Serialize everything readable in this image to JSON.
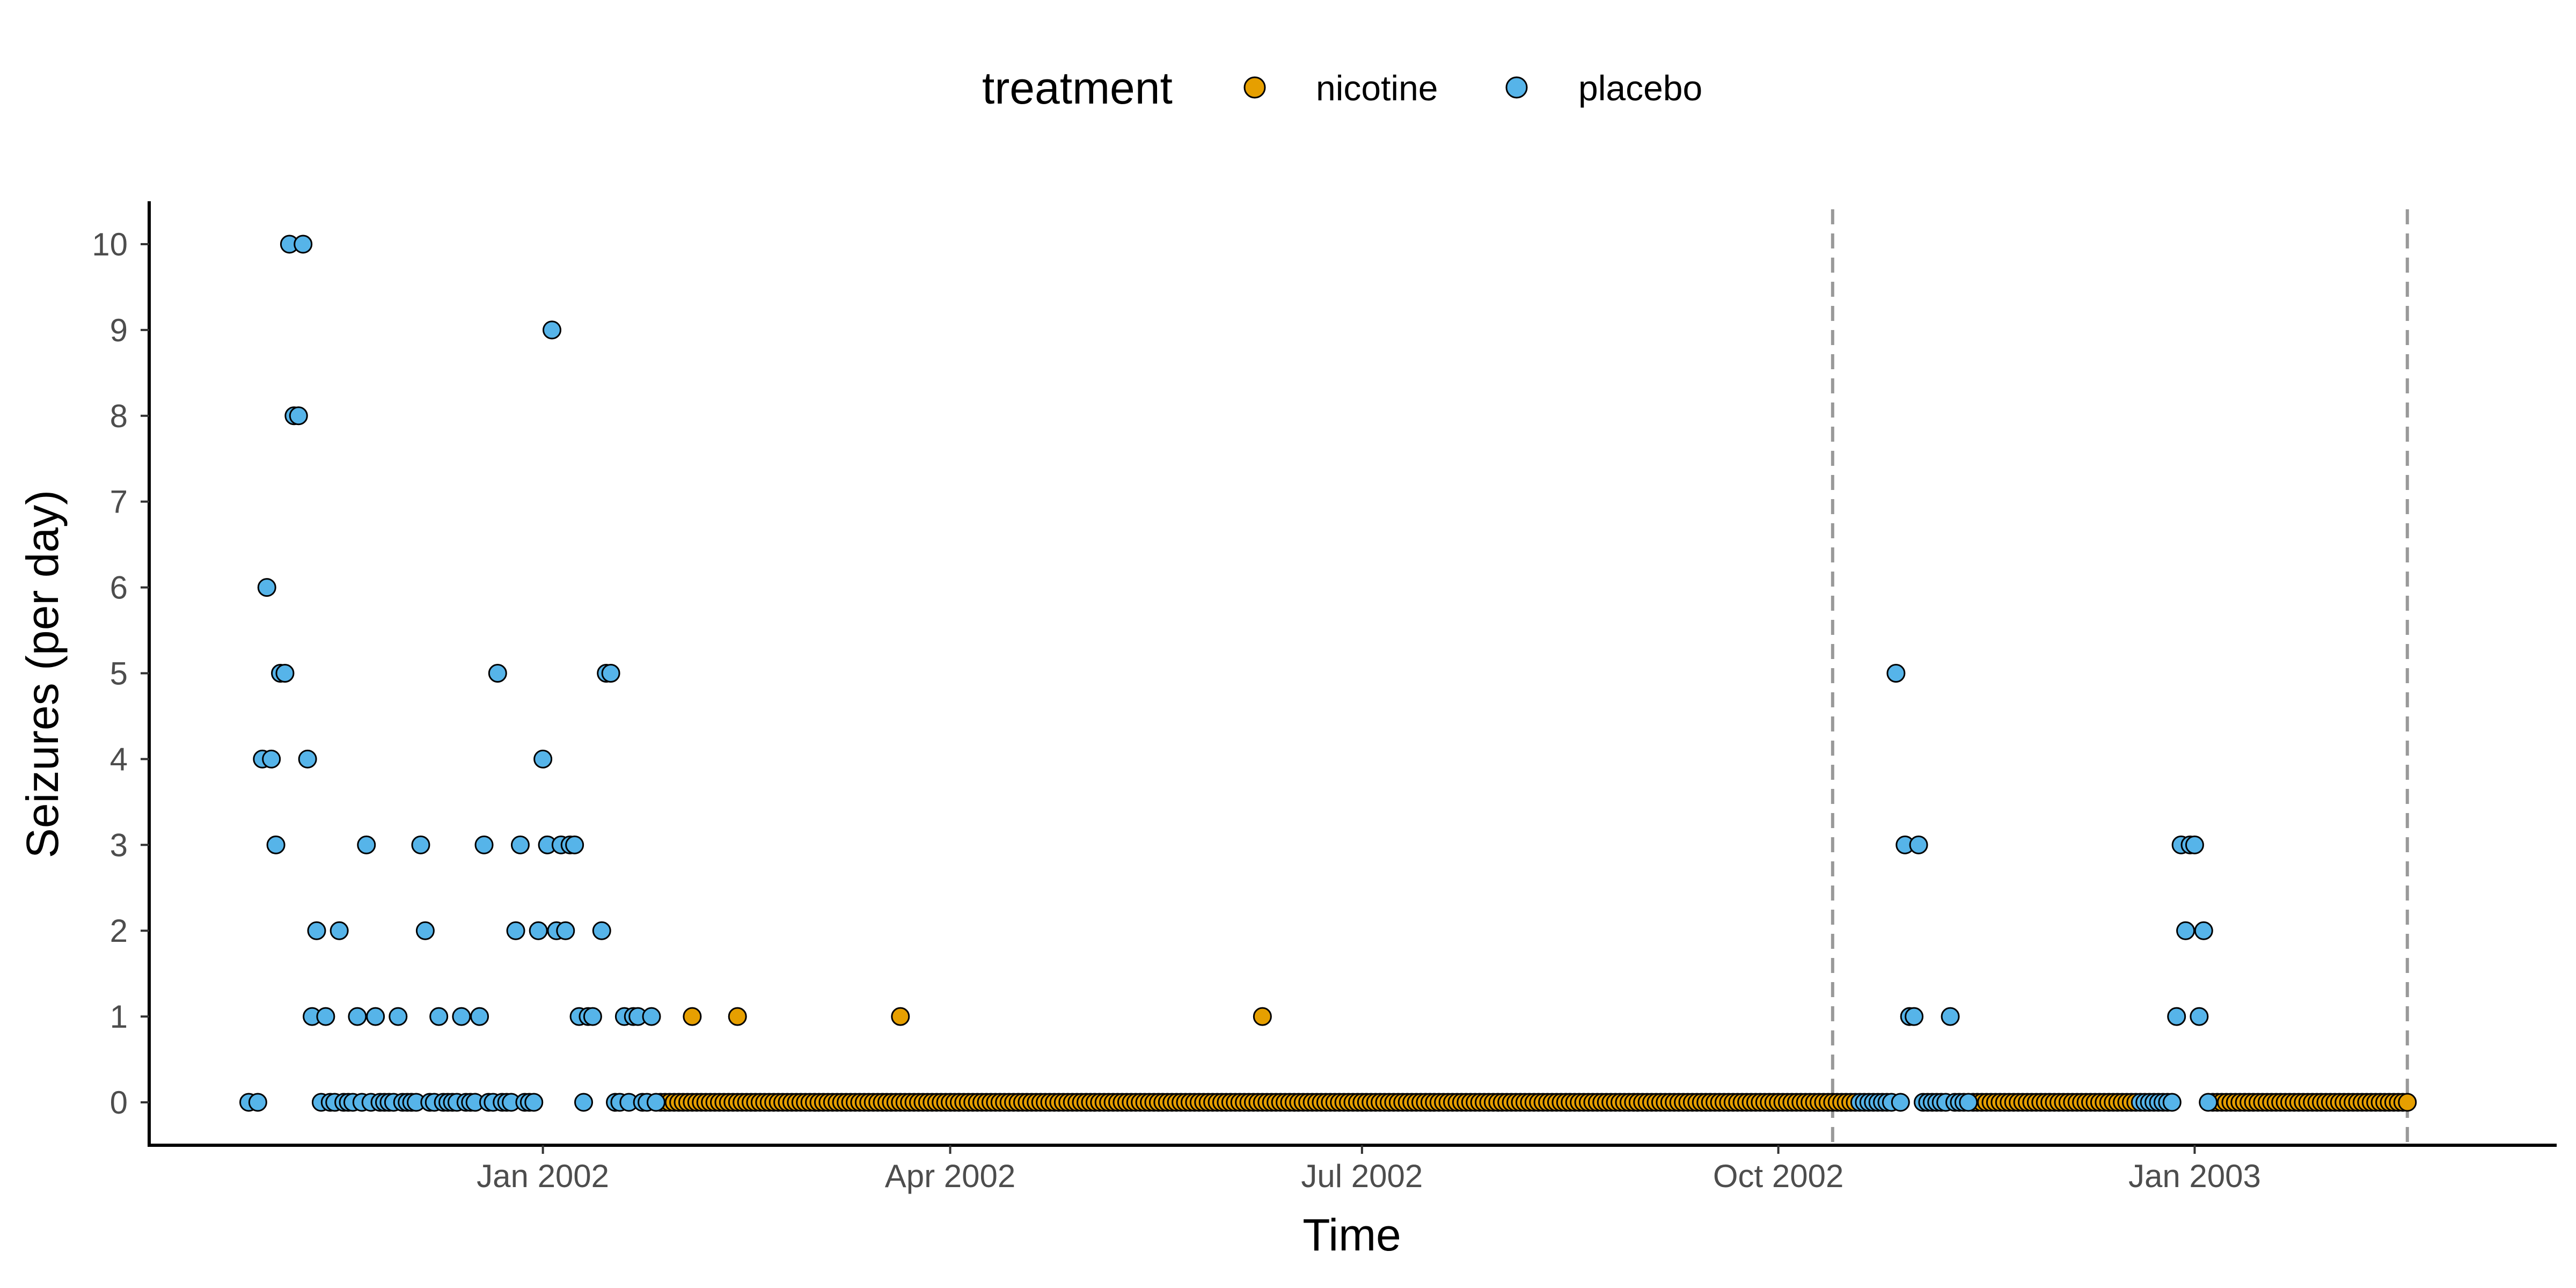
{
  "chart_data": {
    "type": "scatter",
    "xlabel": "Time",
    "ylabel": "Seizures (per day)",
    "x_ticks": [
      "2002-01-01",
      "2002-04-01",
      "2002-07-01",
      "2002-10-01",
      "2003-01-01"
    ],
    "x_tick_labels": [
      "Jan 2002",
      "Apr 2002",
      "Jul 2002",
      "Oct 2002",
      "Jan 2003"
    ],
    "xlim": [
      "2001-10-06",
      "2003-03-22"
    ],
    "ylim": [
      -0.5,
      10.5
    ],
    "y_ticks": [
      0,
      1,
      2,
      3,
      4,
      5,
      6,
      7,
      8,
      9,
      10
    ],
    "y_tick_labels": [
      "0",
      "1",
      "2",
      "3",
      "4",
      "5",
      "6",
      "7",
      "8",
      "9",
      "10"
    ],
    "grid": false,
    "legend": {
      "title": "treatment",
      "position": "top",
      "items": [
        {
          "label": "nicotine",
          "color": "#E69F00"
        },
        {
          "label": "placebo",
          "color": "#56B4E9"
        }
      ]
    },
    "reference_lines": [
      "2002-10-13",
      "2003-02-17"
    ],
    "reference_line_color": "#999999",
    "series": [
      {
        "name": "placebo",
        "color": "#56B4E9",
        "points": [
          [
            "2001-10-28",
            0
          ],
          [
            "2001-10-30",
            0
          ],
          [
            "2001-10-31",
            4
          ],
          [
            "2001-11-02",
            4
          ],
          [
            "2001-11-01",
            6
          ],
          [
            "2001-11-03",
            3
          ],
          [
            "2001-11-04",
            5
          ],
          [
            "2001-11-05",
            5
          ],
          [
            "2001-11-06",
            10
          ],
          [
            "2001-11-07",
            8
          ],
          [
            "2001-11-08",
            8
          ],
          [
            "2001-11-09",
            10
          ],
          [
            "2001-11-10",
            4
          ],
          [
            "2001-11-12",
            2
          ],
          [
            "2001-11-11",
            1
          ],
          [
            "2001-11-14",
            1
          ],
          [
            "2001-11-17",
            2
          ],
          [
            "2001-11-21",
            1
          ],
          [
            "2001-11-23",
            3
          ],
          [
            "2001-11-25",
            1
          ],
          [
            "2001-11-30",
            1
          ],
          [
            "2001-12-05",
            3
          ],
          [
            "2001-12-06",
            2
          ],
          [
            "2001-12-09",
            1
          ],
          [
            "2001-12-14",
            1
          ],
          [
            "2001-12-18",
            1
          ],
          [
            "2001-12-19",
            3
          ],
          [
            "2001-12-22",
            5
          ],
          [
            "2001-12-26",
            2
          ],
          [
            "2001-12-27",
            3
          ],
          [
            "2001-12-31",
            2
          ],
          [
            "2002-01-01",
            4
          ],
          [
            "2002-01-02",
            3
          ],
          [
            "2002-01-03",
            9
          ],
          [
            "2002-01-04",
            2
          ],
          [
            "2002-01-05",
            3
          ],
          [
            "2002-01-06",
            2
          ],
          [
            "2002-01-07",
            3
          ],
          [
            "2002-01-08",
            3
          ],
          [
            "2002-01-09",
            1
          ],
          [
            "2002-01-11",
            1
          ],
          [
            "2002-01-12",
            1
          ],
          [
            "2002-01-14",
            2
          ],
          [
            "2002-01-15",
            5
          ],
          [
            "2002-01-16",
            5
          ],
          [
            "2002-01-19",
            1
          ],
          [
            "2002-01-21",
            1
          ],
          [
            "2002-01-22",
            1
          ],
          [
            "2002-01-25",
            1
          ],
          [
            "2001-11-13",
            0
          ],
          [
            "2001-11-15",
            0
          ],
          [
            "2001-11-16",
            0
          ],
          [
            "2001-11-18",
            0
          ],
          [
            "2001-11-19",
            0
          ],
          [
            "2001-11-20",
            0
          ],
          [
            "2001-11-22",
            0
          ],
          [
            "2001-11-24",
            0
          ],
          [
            "2001-11-26",
            0
          ],
          [
            "2001-11-27",
            0
          ],
          [
            "2001-11-28",
            0
          ],
          [
            "2001-11-29",
            0
          ],
          [
            "2001-12-01",
            0
          ],
          [
            "2001-12-02",
            0
          ],
          [
            "2001-12-03",
            0
          ],
          [
            "2001-12-04",
            0
          ],
          [
            "2001-12-07",
            0
          ],
          [
            "2001-12-08",
            0
          ],
          [
            "2001-12-10",
            0
          ],
          [
            "2001-12-11",
            0
          ],
          [
            "2001-12-12",
            0
          ],
          [
            "2001-12-13",
            0
          ],
          [
            "2001-12-15",
            0
          ],
          [
            "2001-12-16",
            0
          ],
          [
            "2001-12-17",
            0
          ],
          [
            "2001-12-20",
            0
          ],
          [
            "2001-12-21",
            0
          ],
          [
            "2001-12-23",
            0
          ],
          [
            "2001-12-24",
            0
          ],
          [
            "2001-12-25",
            0
          ],
          [
            "2001-12-28",
            0
          ],
          [
            "2001-12-29",
            0
          ],
          [
            "2001-12-30",
            0
          ],
          [
            "2002-01-10",
            0
          ],
          [
            "2002-01-17",
            0
          ],
          [
            "2002-01-18",
            0
          ],
          [
            "2002-01-20",
            0
          ],
          [
            "2002-01-23",
            0
          ],
          [
            "2002-01-24",
            0
          ],
          [
            "2002-01-26",
            0
          ],
          [
            "2002-10-27",
            5
          ],
          [
            "2002-10-29",
            3
          ],
          [
            "2002-10-30",
            1
          ],
          [
            "2002-10-31",
            1
          ],
          [
            "2002-11-01",
            3
          ],
          [
            "2002-11-08",
            1
          ],
          [
            "2002-10-19",
            0
          ],
          [
            "2002-10-20",
            0
          ],
          [
            "2002-10-21",
            0
          ],
          [
            "2002-10-22",
            0
          ],
          [
            "2002-10-23",
            0
          ],
          [
            "2002-10-24",
            0
          ],
          [
            "2002-10-25",
            0
          ],
          [
            "2002-10-26",
            0
          ],
          [
            "2002-10-28",
            0
          ],
          [
            "2002-11-02",
            0
          ],
          [
            "2002-11-03",
            0
          ],
          [
            "2002-11-04",
            0
          ],
          [
            "2002-11-05",
            0
          ],
          [
            "2002-11-06",
            0
          ],
          [
            "2002-11-07",
            0
          ],
          [
            "2002-11-09",
            0
          ],
          [
            "2002-11-10",
            0
          ],
          [
            "2002-11-11",
            0
          ],
          [
            "2002-11-12",
            0
          ],
          [
            "2002-12-28",
            1
          ],
          [
            "2002-12-29",
            3
          ],
          [
            "2002-12-30",
            2
          ],
          [
            "2002-12-31",
            3
          ],
          [
            "2003-01-01",
            3
          ],
          [
            "2003-01-02",
            1
          ],
          [
            "2003-01-03",
            2
          ],
          [
            "2002-12-20",
            0
          ],
          [
            "2002-12-21",
            0
          ],
          [
            "2002-12-22",
            0
          ],
          [
            "2002-12-23",
            0
          ],
          [
            "2002-12-24",
            0
          ],
          [
            "2002-12-25",
            0
          ],
          [
            "2002-12-26",
            0
          ],
          [
            "2002-12-27",
            0
          ],
          [
            "2003-01-04",
            0
          ]
        ]
      },
      {
        "name": "nicotine",
        "color": "#E69F00",
        "ranges_zero": [
          [
            "2002-01-27",
            "2002-10-18"
          ],
          [
            "2002-11-13",
            "2002-12-19"
          ],
          [
            "2003-01-05",
            "2003-02-17"
          ]
        ],
        "points": [
          [
            "2002-02-03",
            1
          ],
          [
            "2002-02-13",
            1
          ],
          [
            "2002-03-21",
            1
          ],
          [
            "2002-06-09",
            1
          ]
        ]
      }
    ]
  }
}
